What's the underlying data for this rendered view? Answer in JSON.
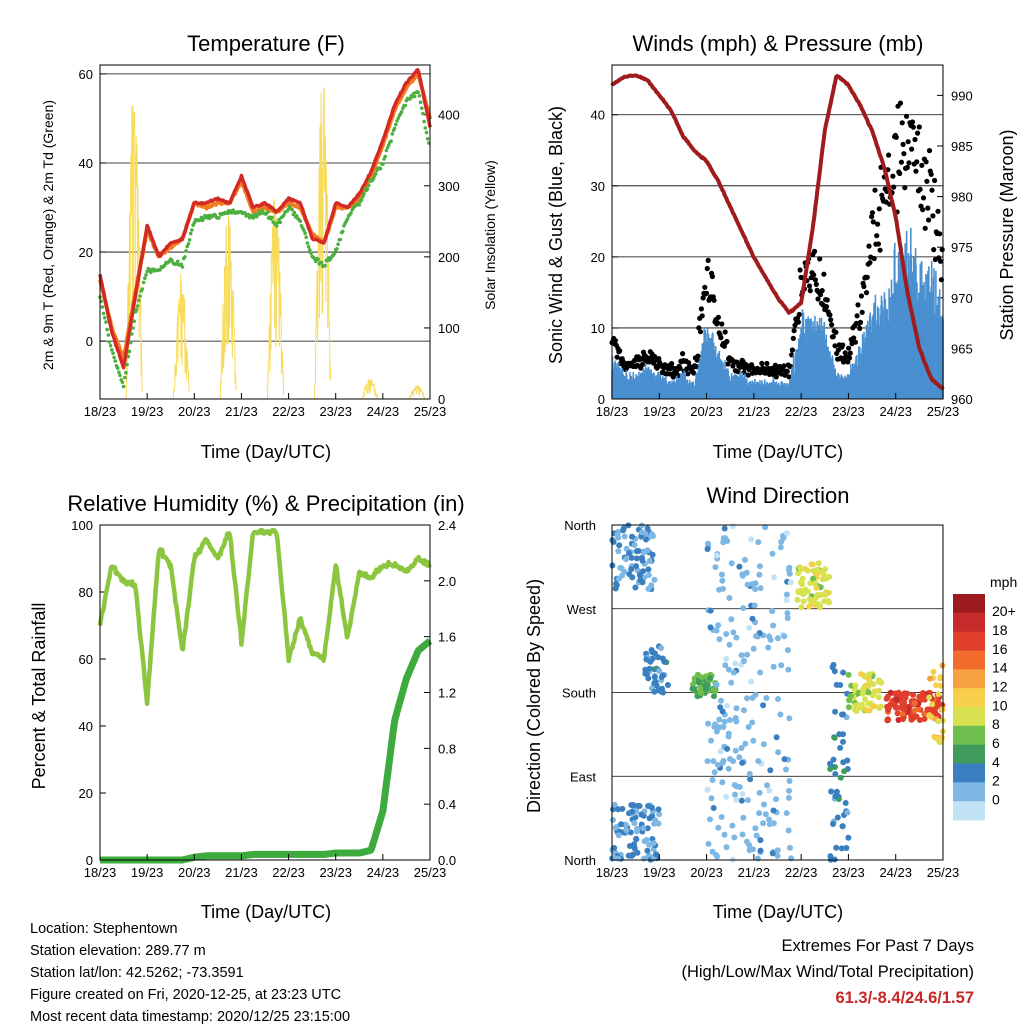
{
  "panels": {
    "temperature": {
      "title": "Temperature (F)",
      "ylabel_left": "2m & 9m T (Red, Orange) & 2m Td (Green)",
      "ylabel_right": "Solar Insolation (Yellow)",
      "xlabel": "Time (Day/UTC)",
      "x_ticks": [
        "18/23",
        "19/23",
        "20/23",
        "21/23",
        "22/23",
        "23/23",
        "24/23",
        "25/23"
      ],
      "y_ticks": [
        "0",
        "20",
        "40",
        "60"
      ],
      "y2_ticks": [
        "0",
        "100",
        "200",
        "300",
        "400"
      ]
    },
    "winds": {
      "title": "Winds (mph) & Pressure (mb)",
      "ylabel_left": "Sonic Wind & Gust (Blue, Black)",
      "ylabel_right": "Station Pressure (Maroon)",
      "xlabel": "Time (Day/UTC)",
      "x_ticks": [
        "18/23",
        "19/23",
        "20/23",
        "21/23",
        "22/23",
        "23/23",
        "24/23",
        "25/23"
      ],
      "y_ticks": [
        "0",
        "10",
        "20",
        "30",
        "40"
      ],
      "y2_ticks": [
        "960",
        "965",
        "970",
        "975",
        "980",
        "985",
        "990"
      ]
    },
    "humidity": {
      "title": "Relative Humidity (%) & Precipitation (in)",
      "ylabel_left": "Percent & Total Rainfall",
      "xlabel": "Time (Day/UTC)",
      "x_ticks": [
        "18/23",
        "19/23",
        "20/23",
        "21/23",
        "22/23",
        "23/23",
        "24/23",
        "25/23"
      ],
      "y_ticks": [
        "0",
        "20",
        "40",
        "60",
        "80",
        "100"
      ],
      "y2_ticks": [
        "0.0",
        "0.4",
        "0.8",
        "1.2",
        "1.6",
        "2.0",
        "2.4"
      ]
    },
    "direction": {
      "title": "Wind Direction",
      "ylabel_left": "Direction (Colored By Speed)",
      "xlabel": "Time (Day/UTC)",
      "x_ticks": [
        "18/23",
        "19/23",
        "20/23",
        "21/23",
        "22/23",
        "23/23",
        "24/23",
        "25/23"
      ],
      "y_ticks": [
        "North",
        "East",
        "South",
        "West",
        "North"
      ],
      "colorbar_unit": "mph",
      "colorbar_labels": [
        "20+",
        "18",
        "16",
        "14",
        "12",
        "10",
        "8",
        "6",
        "4",
        "2",
        "0"
      ],
      "colorbar_colors": [
        "#9b1b1e",
        "#c62a2a",
        "#e0402b",
        "#f26a2c",
        "#f7a242",
        "#f7cf4a",
        "#d8e14f",
        "#6fbf4f",
        "#3f9c5d",
        "#3a7fc0",
        "#7db7e3",
        "#c2e2f6"
      ]
    }
  },
  "info": {
    "location": "Location: Stephentown",
    "elevation": "Station elevation: 289.77 m",
    "latlon": "Station lat/lon: 42.5262; -73.3591",
    "created": "Figure created on Fri, 2020-12-25, at 23:23 UTC",
    "timestamp": "Most recent data timestamp: 2020/12/25 23:15:00"
  },
  "extremes": {
    "line1": "Extremes For Past 7 Days",
    "line2": "(High/Low/Max Wind/Total Precipitation)",
    "values": "61.3/-8.4/24.6/1.57"
  },
  "colors": {
    "temp2m": "#d42a26",
    "temp9m": "#f47b20",
    "dewpoint": "#4caf40",
    "insolation": "#f7dc5c",
    "wind": "#4a90d0",
    "gust": "#000000",
    "pressure": "#a01c1c",
    "rh": "#8cc640",
    "precip": "#3caa3c"
  },
  "chart_data": [
    {
      "type": "line",
      "title": "Temperature (F)",
      "xlabel": "Time (Day/UTC)",
      "ylabel": "2m & 9m T (Red, Orange) & 2m Td (Green)",
      "y2label": "Solar Insolation (Yellow)",
      "x": [
        0,
        0.25,
        0.5,
        0.75,
        1,
        1.25,
        1.5,
        1.75,
        2,
        2.25,
        2.5,
        2.75,
        3,
        3.25,
        3.5,
        3.75,
        4,
        4.25,
        4.5,
        4.75,
        5,
        5.25,
        5.5,
        5.75,
        6,
        6.25,
        6.5,
        6.75,
        7
      ],
      "x_tick_labels": [
        "18/23",
        "19/23",
        "20/23",
        "21/23",
        "22/23",
        "23/23",
        "24/23",
        "25/23"
      ],
      "ylim": [
        -13,
        62
      ],
      "y2lim": [
        0,
        470
      ],
      "series": [
        {
          "name": "2m T",
          "axis": "left",
          "values": [
            15,
            2,
            -6,
            10,
            26,
            19,
            22,
            23,
            31,
            31,
            32,
            31,
            37,
            30,
            31,
            29,
            32,
            31,
            23,
            22,
            31,
            30,
            33,
            38,
            45,
            53,
            58,
            61,
            48
          ]
        },
        {
          "name": "9m T",
          "axis": "left",
          "values": [
            14,
            3,
            -4,
            11,
            25,
            19,
            21,
            23,
            31,
            30,
            31,
            31,
            36,
            29,
            30,
            29,
            31,
            30,
            24,
            22,
            30,
            30,
            32,
            37,
            44,
            52,
            57,
            60,
            50
          ]
        },
        {
          "name": "2m Td",
          "axis": "left",
          "values": [
            10,
            -2,
            -10,
            6,
            16,
            16,
            18,
            17,
            27,
            28,
            28,
            29,
            29,
            28,
            29,
            26,
            30,
            27,
            19,
            17,
            20,
            28,
            31,
            36,
            40,
            48,
            54,
            56,
            43
          ]
        },
        {
          "name": "Solar Insolation",
          "axis": "right",
          "values": [
            0,
            0,
            0,
            0,
            460,
            0,
            0,
            0,
            180,
            0,
            0,
            0,
            280,
            0,
            0,
            0,
            300,
            0,
            0,
            0,
            460,
            0,
            0,
            0,
            30,
            0,
            0,
            0,
            20
          ]
        }
      ]
    },
    {
      "type": "line",
      "title": "Winds (mph) & Pressure (mb)",
      "xlabel": "Time (Day/UTC)",
      "ylabel": "Sonic Wind & Gust (Blue, Black)",
      "y2label": "Station Pressure (Maroon)",
      "x": [
        0,
        0.25,
        0.5,
        0.75,
        1,
        1.25,
        1.5,
        1.75,
        2,
        2.25,
        2.5,
        2.75,
        3,
        3.25,
        3.5,
        3.75,
        4,
        4.25,
        4.5,
        4.75,
        5,
        5.25,
        5.5,
        5.75,
        6,
        6.25,
        6.5,
        6.75,
        7
      ],
      "x_tick_labels": [
        "18/23",
        "19/23",
        "20/23",
        "21/23",
        "22/23",
        "23/23",
        "24/23",
        "25/23"
      ],
      "ylim": [
        0,
        47
      ],
      "y2lim": [
        960,
        993
      ],
      "series": [
        {
          "name": "Sonic Wind",
          "axis": "left",
          "values": [
            5,
            3,
            3,
            4,
            3,
            2,
            3,
            2,
            9,
            6,
            3,
            3,
            2,
            2,
            2,
            2,
            9,
            10,
            8,
            3,
            3,
            6,
            11,
            13,
            17,
            18,
            17,
            16,
            12
          ]
        },
        {
          "name": "Gust",
          "axis": "left",
          "values": [
            8,
            5,
            5,
            6,
            5,
            4,
            5,
            4,
            17,
            11,
            5,
            5,
            4,
            4,
            4,
            4,
            17,
            18,
            15,
            7,
            6,
            12,
            22,
            28,
            34,
            37,
            32,
            28,
            20
          ]
        },
        {
          "name": "Station Pressure",
          "axis": "right",
          "values": [
            991,
            991.8,
            992,
            991.5,
            990,
            988.5,
            986,
            984.5,
            983.5,
            981.5,
            979,
            976.5,
            974,
            972,
            970,
            968.5,
            969.5,
            977,
            986.5,
            992,
            991,
            989,
            986.5,
            983,
            978,
            970.5,
            965,
            962,
            961
          ]
        }
      ]
    },
    {
      "type": "line",
      "title": "Relative Humidity (%) & Precipitation (in)",
      "xlabel": "Time (Day/UTC)",
      "ylabel": "Percent & Total Rainfall",
      "x": [
        0,
        0.25,
        0.5,
        0.75,
        1,
        1.25,
        1.5,
        1.75,
        2,
        2.25,
        2.5,
        2.75,
        3,
        3.25,
        3.5,
        3.75,
        4,
        4.25,
        4.5,
        4.75,
        5,
        5.25,
        5.5,
        5.75,
        6,
        6.25,
        6.5,
        6.75,
        7
      ],
      "x_tick_labels": [
        "18/23",
        "19/23",
        "20/23",
        "21/23",
        "22/23",
        "23/23",
        "24/23",
        "25/23"
      ],
      "ylim": [
        0,
        100
      ],
      "y2lim": [
        0,
        2.4
      ],
      "series": [
        {
          "name": "Relative Humidity",
          "axis": "left",
          "values": [
            70,
            88,
            83,
            82,
            47,
            93,
            88,
            62,
            90,
            96,
            90,
            98,
            65,
            98,
            98,
            98,
            60,
            72,
            62,
            60,
            88,
            66,
            86,
            84,
            88,
            88,
            86,
            90,
            88
          ]
        },
        {
          "name": "Total Precipitation",
          "axis": "right",
          "values": [
            0,
            0,
            0,
            0,
            0,
            0,
            0,
            0,
            0.02,
            0.03,
            0.03,
            0.03,
            0.03,
            0.04,
            0.04,
            0.04,
            0.04,
            0.04,
            0.04,
            0.04,
            0.05,
            0.05,
            0.05,
            0.07,
            0.35,
            1.0,
            1.3,
            1.5,
            1.57
          ]
        }
      ]
    },
    {
      "type": "scatter",
      "title": "Wind Direction",
      "xlabel": "Time (Day/UTC)",
      "ylabel": "Direction (Colored By Speed)",
      "x_tick_labels": [
        "18/23",
        "19/23",
        "20/23",
        "21/23",
        "22/23",
        "23/23",
        "24/23",
        "25/23"
      ],
      "y_tick_labels": [
        "North",
        "East",
        "South",
        "West",
        "North"
      ],
      "ylim": [
        0,
        360
      ],
      "colorbar": {
        "unit": "mph",
        "levels": [
          "0",
          "2",
          "4",
          "6",
          "8",
          "10",
          "12",
          "14",
          "16",
          "18",
          "20+"
        ]
      },
      "clusters": [
        {
          "x_range": [
            0.0,
            1.0
          ],
          "dir_range": [
            0,
            60
          ],
          "speed": 3
        },
        {
          "x_range": [
            0.0,
            0.9
          ],
          "dir_range": [
            290,
            360
          ],
          "speed": 3
        },
        {
          "x_range": [
            0.7,
            1.2
          ],
          "dir_range": [
            180,
            230
          ],
          "speed": 4
        },
        {
          "x_range": [
            1.7,
            2.2
          ],
          "dir_range": [
            175,
            200
          ],
          "speed": 7
        },
        {
          "x_range": [
            2.0,
            3.8
          ],
          "dir_range": [
            0,
            360
          ],
          "speed": 2
        },
        {
          "x_range": [
            3.9,
            4.6
          ],
          "dir_range": [
            270,
            320
          ],
          "speed": 10
        },
        {
          "x_range": [
            4.6,
            5.0
          ],
          "dir_range": [
            0,
            210
          ],
          "speed": 4
        },
        {
          "x_range": [
            5.0,
            5.7
          ],
          "dir_range": [
            160,
            200
          ],
          "speed": 10
        },
        {
          "x_range": [
            5.8,
            7.0
          ],
          "dir_range": [
            150,
            180
          ],
          "speed": 18
        },
        {
          "x_range": [
            6.7,
            7.0
          ],
          "dir_range": [
            120,
            210
          ],
          "speed": 12
        }
      ]
    }
  ]
}
